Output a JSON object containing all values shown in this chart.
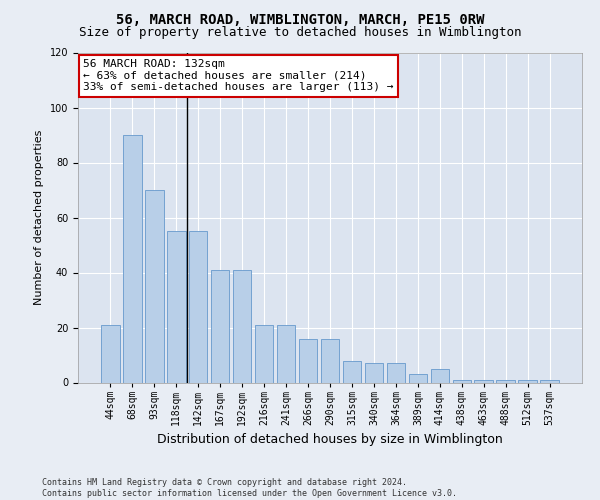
{
  "title": "56, MARCH ROAD, WIMBLINGTON, MARCH, PE15 0RW",
  "subtitle": "Size of property relative to detached houses in Wimblington",
  "xlabel": "Distribution of detached houses by size in Wimblington",
  "ylabel": "Number of detached properties",
  "footer_line1": "Contains HM Land Registry data © Crown copyright and database right 2024.",
  "footer_line2": "Contains public sector information licensed under the Open Government Licence v3.0.",
  "categories": [
    "44sqm",
    "68sqm",
    "93sqm",
    "118sqm",
    "142sqm",
    "167sqm",
    "192sqm",
    "216sqm",
    "241sqm",
    "266sqm",
    "290sqm",
    "315sqm",
    "340sqm",
    "364sqm",
    "389sqm",
    "414sqm",
    "438sqm",
    "463sqm",
    "488sqm",
    "512sqm",
    "537sqm"
  ],
  "values": [
    21,
    90,
    70,
    55,
    55,
    41,
    41,
    21,
    21,
    16,
    16,
    8,
    7,
    7,
    3,
    5,
    1,
    1,
    1,
    1,
    1
  ],
  "bar_color": "#b8cfe8",
  "bar_edge_color": "#6699cc",
  "annotation_text": "56 MARCH ROAD: 132sqm\n← 63% of detached houses are smaller (214)\n33% of semi-detached houses are larger (113) →",
  "annotation_box_facecolor": "#ffffff",
  "annotation_box_edgecolor": "#cc0000",
  "vline_x_data": 3.5,
  "ylim": [
    0,
    120
  ],
  "yticks": [
    0,
    20,
    40,
    60,
    80,
    100,
    120
  ],
  "bg_color": "#e8edf4",
  "plot_bg_color": "#dce4f0",
  "grid_color": "#ffffff",
  "title_fontsize": 10,
  "subtitle_fontsize": 9,
  "ylabel_fontsize": 8,
  "xlabel_fontsize": 9,
  "tick_fontsize": 7,
  "footer_fontsize": 6,
  "annotation_fontsize": 8
}
